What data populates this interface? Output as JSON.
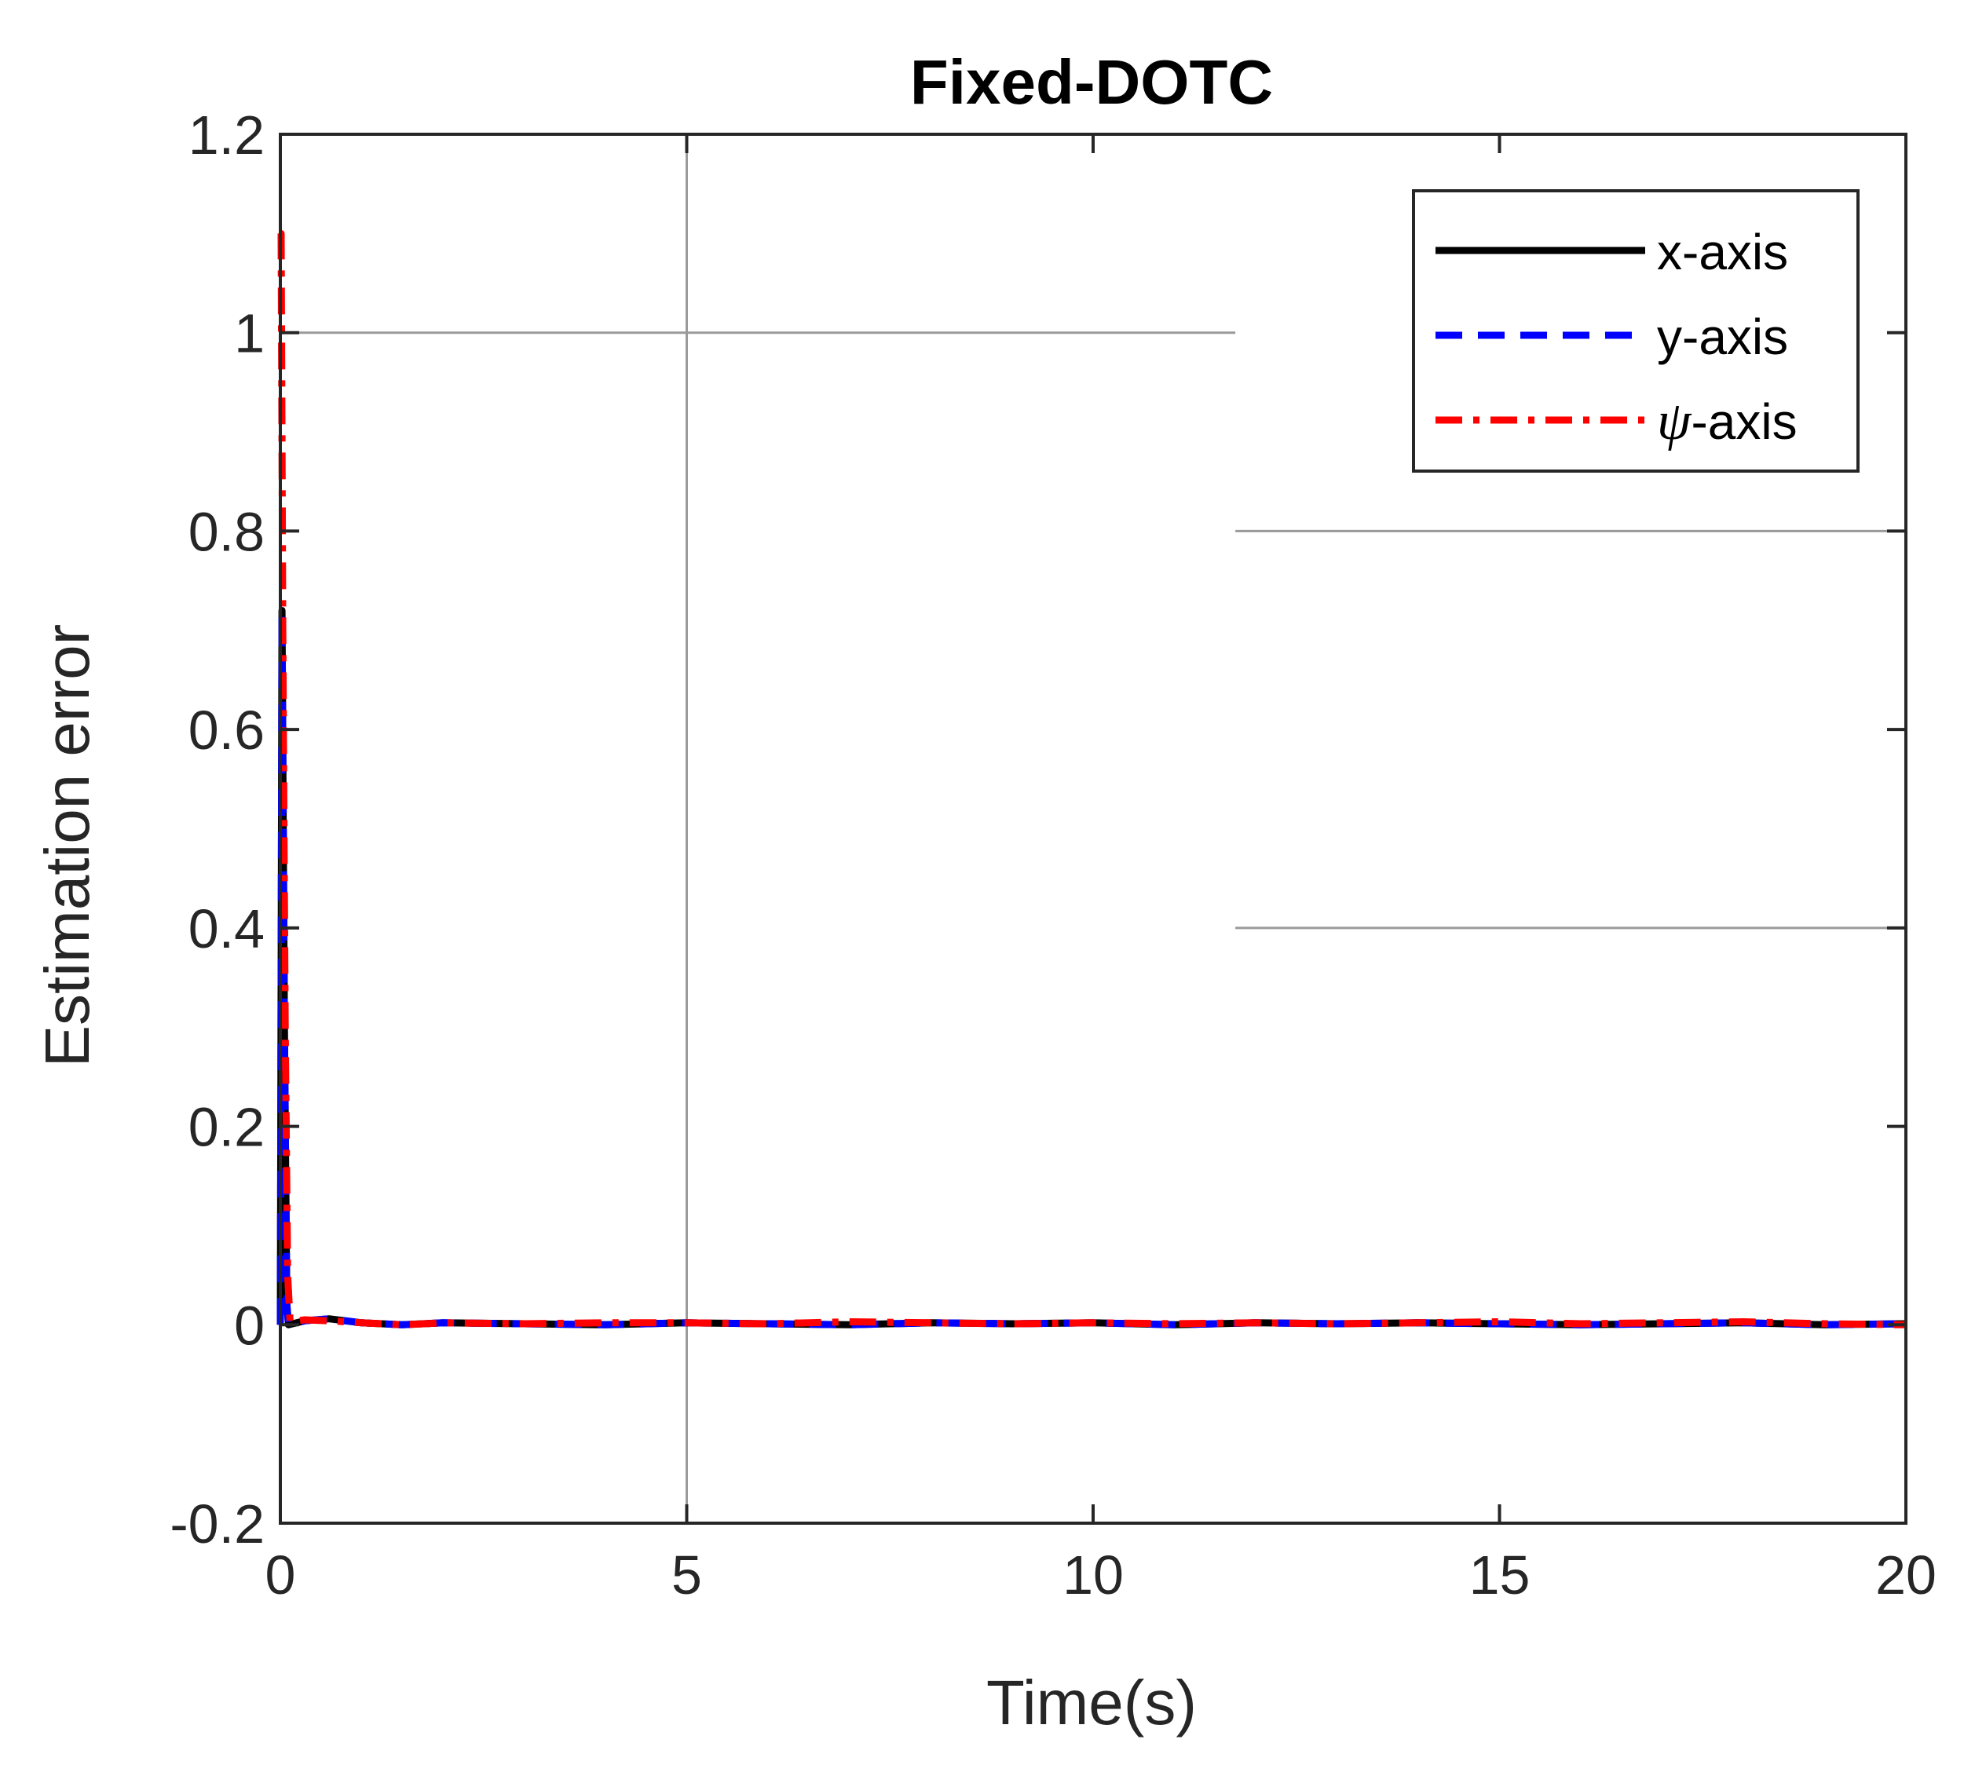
{
  "chart_data": {
    "type": "line",
    "title": "Fixed-DOTC",
    "xlabel": "Time(s)",
    "ylabel": "Estimation error",
    "xlim": [
      0,
      20
    ],
    "ylim": [
      -0.2,
      1.2
    ],
    "xticks": [
      0,
      5,
      10,
      15,
      20
    ],
    "yticks": [
      -0.2,
      0,
      0.2,
      0.4,
      0.6,
      0.8,
      1,
      1.2
    ],
    "xtick_labels": [
      "0",
      "5",
      "10",
      "15",
      "20"
    ],
    "ytick_labels": [
      "-0.2",
      "0",
      "0.2",
      "0.4",
      "0.6",
      "0.8",
      "1",
      "1.2"
    ],
    "grid": [
      {
        "orientation": "vertical",
        "x": 5,
        "y_from": -0.2,
        "y_to": 1.2
      },
      {
        "orientation": "horizontal",
        "y": 1.0,
        "x_from": 0,
        "x_to": 11.75
      },
      {
        "orientation": "horizontal",
        "y": 0.8,
        "x_from": 11.75,
        "x_to": 20
      },
      {
        "orientation": "horizontal",
        "y": 0.4,
        "x_from": 11.75,
        "x_to": 20
      }
    ],
    "legend": {
      "position": "top-right",
      "entries": [
        {
          "label": "x-axis",
          "italic_prefix": "",
          "color": "#000000",
          "style": "solid"
        },
        {
          "label": "y-axis",
          "italic_prefix": "",
          "color": "#0000ff",
          "style": "dashed"
        },
        {
          "label": "-axis",
          "italic_prefix": "ψ",
          "color": "#ff0000",
          "style": "dashdot"
        }
      ]
    },
    "series": [
      {
        "name": "x-axis",
        "color": "#000000",
        "style": "solid",
        "x": [
          0,
          0.02,
          0.05,
          0.08,
          0.1,
          0.3,
          0.6,
          1,
          1.5,
          2,
          3,
          4,
          5,
          6,
          7,
          8,
          9,
          10,
          11,
          12,
          13,
          14,
          15,
          16,
          17,
          18,
          19,
          20
        ],
        "y": [
          0,
          0.72,
          0.3,
          0.02,
          0.0,
          0.004,
          0.006,
          0.002,
          0.0,
          0.002,
          0.001,
          0.0,
          0.002,
          0.001,
          0.0,
          0.002,
          0.001,
          0.002,
          0.0,
          0.002,
          0.001,
          0.002,
          0.001,
          0.0,
          0.001,
          0.002,
          0.0,
          0.001
        ]
      },
      {
        "name": "y-axis",
        "color": "#0000ff",
        "style": "dashed",
        "x": [
          0,
          0.02,
          0.05,
          0.08,
          0.1,
          0.3,
          0.6,
          1,
          1.5,
          2,
          3,
          4,
          5,
          6,
          7,
          8,
          9,
          10,
          11,
          12,
          13,
          14,
          15,
          16,
          17,
          18,
          19,
          20
        ],
        "y": [
          0,
          0.72,
          0.3,
          0.02,
          0.0,
          0.004,
          0.006,
          0.002,
          0.0,
          0.002,
          0.001,
          0.0,
          0.002,
          0.001,
          0.0,
          0.002,
          0.001,
          0.002,
          0.0,
          0.002,
          0.001,
          0.002,
          0.001,
          0.0,
          0.001,
          0.002,
          0.0,
          0.001
        ]
      },
      {
        "name": "ψ-axis",
        "color": "#ff0000",
        "style": "dashdot",
        "x": [
          0,
          0.01,
          0.03,
          0.06,
          0.09,
          0.12,
          0.3,
          0.6,
          1,
          1.5,
          2,
          3,
          4,
          5,
          6,
          7,
          8,
          9,
          10,
          11,
          12,
          13,
          14,
          15,
          16,
          17,
          18,
          19,
          20
        ],
        "y": [
          1.1,
          1.1,
          0.7,
          0.3,
          0.05,
          0.003,
          0.005,
          0.004,
          0.002,
          0.0,
          0.002,
          0.001,
          0.002,
          0.002,
          0.001,
          0.003,
          0.002,
          0.001,
          0.002,
          0.001,
          0.002,
          0.001,
          0.002,
          0.003,
          0.001,
          0.002,
          0.003,
          0.001,
          0.0
        ]
      }
    ]
  }
}
